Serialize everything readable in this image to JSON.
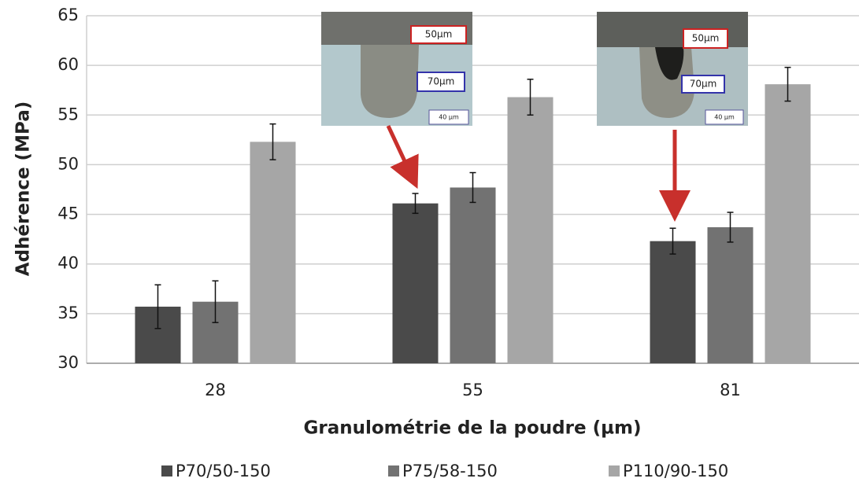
{
  "chart_data": {
    "type": "bar",
    "x_label": "Granulométrie de la poudre (µm)",
    "y_label": "Adhérence (MPa)",
    "categories": [
      "28",
      "55",
      "81"
    ],
    "series": [
      {
        "name": "P70/50-150",
        "color": "#4a4a4a",
        "values": [
          35.7,
          46.1,
          42.3
        ],
        "errors": [
          2.2,
          1.0,
          1.3
        ]
      },
      {
        "name": "P75/58-150",
        "color": "#727272",
        "values": [
          36.2,
          47.7,
          43.7
        ],
        "errors": [
          2.1,
          1.5,
          1.5
        ]
      },
      {
        "name": "P110/90-150",
        "color": "#a6a6a6",
        "values": [
          52.3,
          56.8,
          58.1
        ],
        "errors": [
          1.8,
          1.8,
          1.7
        ]
      }
    ],
    "ylim": [
      30,
      65
    ],
    "yticks": [
      30,
      35,
      40,
      45,
      50,
      55,
      60,
      65
    ],
    "grid": true,
    "legend": "bottom",
    "insets": [
      {
        "depth_label": "50µm",
        "width_label": "70µm",
        "scale_label": "40 µm"
      },
      {
        "depth_label": "50µm",
        "width_label": "70µm",
        "scale_label": "40 µm"
      }
    ]
  }
}
